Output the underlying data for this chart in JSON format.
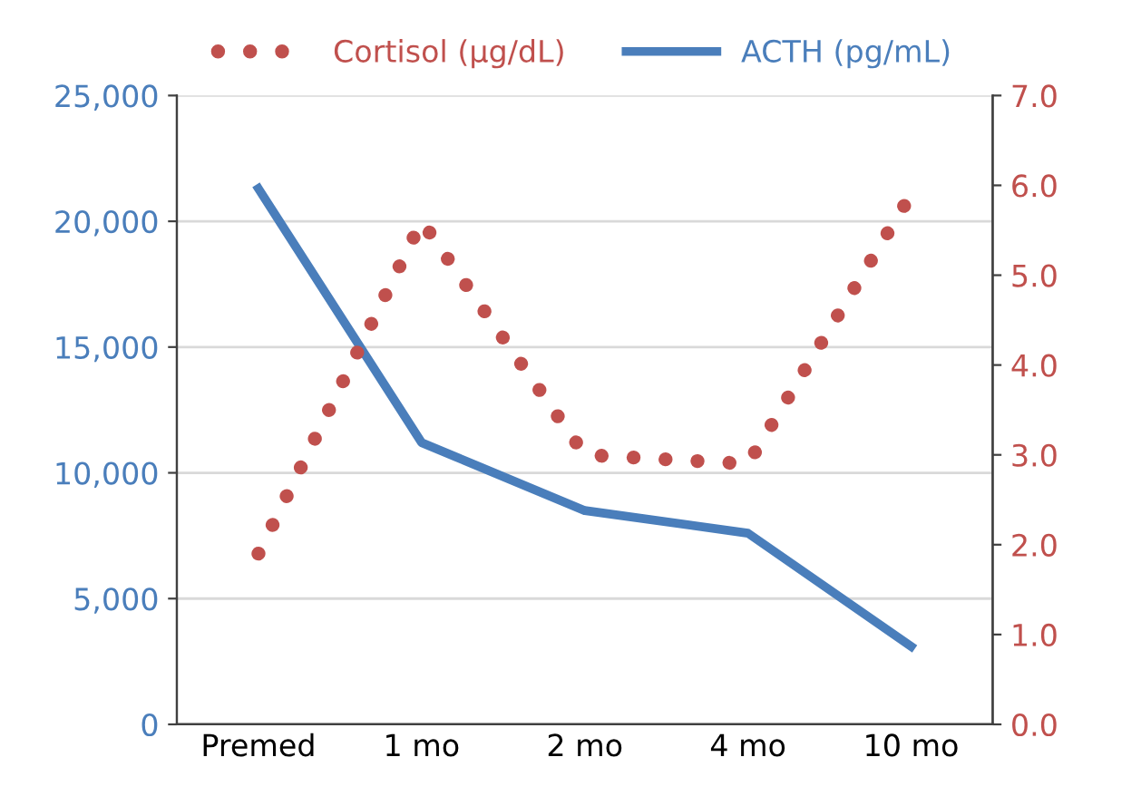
{
  "chart_data": {
    "type": "line",
    "categories": [
      "Premed",
      "1 mo",
      "2 mo",
      "4 mo",
      "10 mo"
    ],
    "series": [
      {
        "name": "Cortisol (µg/dL)",
        "color": "#c0504d",
        "values": [
          1.9,
          5.6,
          3.0,
          2.9,
          5.9
        ],
        "axis": "y2",
        "line_style": "dotted"
      },
      {
        "name": "ACTH (pg/mL)",
        "color": "#4a7ebb",
        "values": [
          21300,
          11200,
          8500,
          7600,
          3100
        ],
        "axis": "y",
        "line_style": "solid"
      }
    ],
    "ylim": [
      0,
      25000
    ],
    "yticks": [
      {
        "value": 0,
        "label": "0"
      },
      {
        "value": 5000,
        "label": "5,000"
      },
      {
        "value": 10000,
        "label": "10,000"
      },
      {
        "value": 15000,
        "label": "15,000"
      },
      {
        "value": 20000,
        "label": "20,000"
      },
      {
        "value": 25000,
        "label": "25,000"
      }
    ],
    "y2lim": [
      0,
      7
    ],
    "y2ticks": [
      {
        "value": 0,
        "label": "0.0"
      },
      {
        "value": 1,
        "label": "1.0"
      },
      {
        "value": 2,
        "label": "2.0"
      },
      {
        "value": 3,
        "label": "3.0"
      },
      {
        "value": 4,
        "label": "4.0"
      },
      {
        "value": 5,
        "label": "5.0"
      },
      {
        "value": 6,
        "label": "6.0"
      },
      {
        "value": 7,
        "label": "7.0"
      }
    ],
    "grid": "y",
    "legend": "top",
    "marker": "none"
  }
}
